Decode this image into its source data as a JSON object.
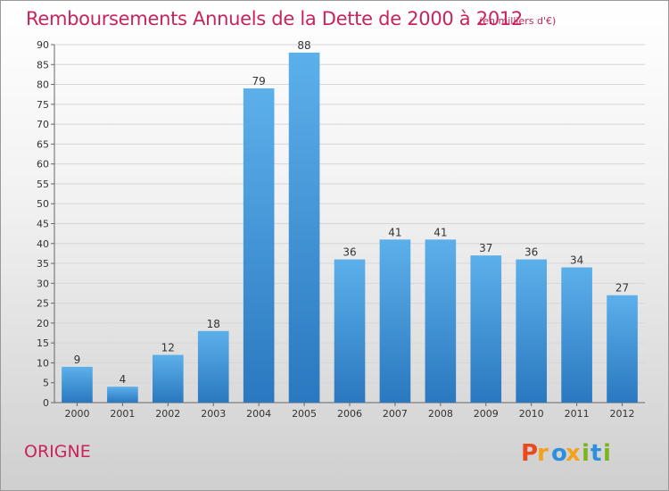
{
  "chart_data": {
    "type": "bar",
    "title": "Remboursements Annuels de la Dette de 2000 à 2012",
    "subtitle": "(en milliers d'€)",
    "categories": [
      "2000",
      "2001",
      "2002",
      "2003",
      "2004",
      "2005",
      "2006",
      "2007",
      "2008",
      "2009",
      "2010",
      "2011",
      "2012"
    ],
    "values": [
      9,
      4,
      12,
      18,
      79,
      88,
      36,
      41,
      41,
      37,
      36,
      34,
      27
    ],
    "xlabel": "",
    "ylabel": "",
    "ylim": [
      0,
      90
    ],
    "ytick_step": 5,
    "grid": true,
    "legend": "none",
    "bar_color": "#3a8fd6"
  },
  "commune": "ORIGNE",
  "brand": {
    "name": "Proxiti",
    "letters": [
      "P",
      "r",
      "o",
      "x",
      "i",
      "t",
      "i"
    ],
    "colors": [
      "#e84b1f",
      "#f2a21c",
      "#2f8fdf",
      "#f2a21c",
      "#7ab51d",
      "#2f8fdf",
      "#7ab51d"
    ]
  }
}
